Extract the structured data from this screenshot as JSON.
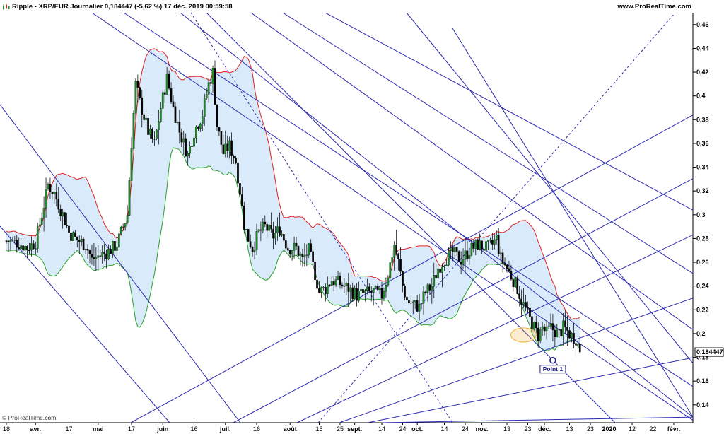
{
  "header": {
    "title": "Ripple - XRP/EUR Journalier 0,184447 (-5,62 %) 17 déc. 2019 00:59:58",
    "source": "www.ProRealTime.com"
  },
  "watermark": "© ProRealTime.com",
  "point_label": "Point 1",
  "last_price_label": "0,184447",
  "colors": {
    "bull_candle": "#1f8a2a",
    "bear_candle": "#000000",
    "upper_band": "#e02020",
    "lower_band": "#28a028",
    "band_fill": "#d9ebfb",
    "gann_lines": "#2a2ab0",
    "highlight": "#f5b942"
  },
  "chart_data": {
    "type": "candlestick",
    "title": "Ripple - XRP/EUR Journalier",
    "ylim": [
      0.125,
      0.47
    ],
    "y_ticks": [
      0.14,
      0.16,
      0.18,
      0.2,
      0.22,
      0.24,
      0.26,
      0.28,
      0.3,
      0.32,
      0.34,
      0.36,
      0.38,
      0.4,
      0.42,
      0.44,
      0.46
    ],
    "y_tick_labels": [
      "0,14",
      "0,16",
      "0,18",
      "0,2",
      "0,22",
      "0,24",
      "0,26",
      "0,28",
      "0,3",
      "0,32",
      "0,34",
      "0,36",
      "0,38",
      "0,4",
      "0,42",
      "0,44",
      "0,46"
    ],
    "x_ticks": [
      {
        "label": "18",
        "day": 0,
        "bold": false
      },
      {
        "label": "avr.",
        "day": 14,
        "bold": true
      },
      {
        "label": "17",
        "day": 30,
        "bold": false
      },
      {
        "label": "mai",
        "day": 44,
        "bold": true
      },
      {
        "label": "17",
        "day": 60,
        "bold": false
      },
      {
        "label": "juin",
        "day": 75,
        "bold": true
      },
      {
        "label": "16",
        "day": 90,
        "bold": false
      },
      {
        "label": "juil.",
        "day": 105,
        "bold": true
      },
      {
        "label": "16",
        "day": 120,
        "bold": false
      },
      {
        "label": "août",
        "day": 136,
        "bold": true
      },
      {
        "label": "15",
        "day": 150,
        "bold": false
      },
      {
        "label": "25",
        "day": 160,
        "bold": false
      },
      {
        "label": "sept.",
        "day": 167,
        "bold": true
      },
      {
        "label": "14",
        "day": 180,
        "bold": false
      },
      {
        "label": "24",
        "day": 190,
        "bold": false
      },
      {
        "label": "oct.",
        "day": 197,
        "bold": true
      },
      {
        "label": "14",
        "day": 210,
        "bold": false
      },
      {
        "label": "24",
        "day": 220,
        "bold": false
      },
      {
        "label": "nov.",
        "day": 228,
        "bold": true
      },
      {
        "label": "13",
        "day": 240,
        "bold": false
      },
      {
        "label": "23",
        "day": 250,
        "bold": false
      },
      {
        "label": "déc.",
        "day": 258,
        "bold": true
      },
      {
        "label": "13",
        "day": 270,
        "bold": false
      },
      {
        "label": "23",
        "day": 280,
        "bold": false
      },
      {
        "label": "2020",
        "day": 289,
        "bold": true
      },
      {
        "label": "12",
        "day": 300,
        "bold": false
      },
      {
        "label": "22",
        "day": 310,
        "bold": false
      },
      {
        "label": "févr.",
        "day": 320,
        "bold": true
      }
    ],
    "last_value": 0.184447,
    "change_pct": -5.62,
    "price_path": [
      [
        0,
        0.278
      ],
      [
        6,
        0.276
      ],
      [
        10,
        0.272
      ],
      [
        14,
        0.277
      ],
      [
        17,
        0.3
      ],
      [
        20,
        0.325
      ],
      [
        23,
        0.318
      ],
      [
        27,
        0.3
      ],
      [
        30,
        0.285
      ],
      [
        33,
        0.28
      ],
      [
        38,
        0.275
      ],
      [
        41,
        0.262
      ],
      [
        44,
        0.265
      ],
      [
        48,
        0.268
      ],
      [
        53,
        0.275
      ],
      [
        58,
        0.3
      ],
      [
        60,
        0.36
      ],
      [
        62,
        0.41
      ],
      [
        64,
        0.395
      ],
      [
        68,
        0.37
      ],
      [
        71,
        0.36
      ],
      [
        74,
        0.39
      ],
      [
        77,
        0.415
      ],
      [
        80,
        0.39
      ],
      [
        83,
        0.37
      ],
      [
        87,
        0.35
      ],
      [
        90,
        0.37
      ],
      [
        94,
        0.385
      ],
      [
        97,
        0.41
      ],
      [
        99,
        0.42
      ],
      [
        101,
        0.375
      ],
      [
        104,
        0.352
      ],
      [
        107,
        0.358
      ],
      [
        110,
        0.345
      ],
      [
        112,
        0.32
      ],
      [
        114,
        0.292
      ],
      [
        116,
        0.28
      ],
      [
        118,
        0.272
      ],
      [
        121,
        0.285
      ],
      [
        124,
        0.29
      ],
      [
        128,
        0.282
      ],
      [
        131,
        0.288
      ],
      [
        135,
        0.272
      ],
      [
        139,
        0.272
      ],
      [
        142,
        0.262
      ],
      [
        145,
        0.27
      ],
      [
        148,
        0.25
      ],
      [
        150,
        0.235
      ],
      [
        153,
        0.238
      ],
      [
        156,
        0.245
      ],
      [
        160,
        0.242
      ],
      [
        164,
        0.238
      ],
      [
        168,
        0.232
      ],
      [
        172,
        0.234
      ],
      [
        176,
        0.235
      ],
      [
        180,
        0.232
      ],
      [
        183,
        0.25
      ],
      [
        186,
        0.275
      ],
      [
        188,
        0.26
      ],
      [
        190,
        0.24
      ],
      [
        192,
        0.228
      ],
      [
        195,
        0.225
      ],
      [
        198,
        0.222
      ],
      [
        201,
        0.235
      ],
      [
        204,
        0.24
      ],
      [
        207,
        0.255
      ],
      [
        210,
        0.262
      ],
      [
        214,
        0.268
      ],
      [
        218,
        0.262
      ],
      [
        222,
        0.27
      ],
      [
        226,
        0.275
      ],
      [
        230,
        0.272
      ],
      [
        233,
        0.275
      ],
      [
        235,
        0.28
      ],
      [
        237,
        0.263
      ],
      [
        240,
        0.255
      ],
      [
        243,
        0.245
      ],
      [
        245,
        0.238
      ],
      [
        247,
        0.228
      ],
      [
        249,
        0.22
      ],
      [
        251,
        0.212
      ],
      [
        253,
        0.205
      ],
      [
        255,
        0.198
      ],
      [
        257,
        0.205
      ],
      [
        259,
        0.2
      ],
      [
        261,
        0.205
      ],
      [
        263,
        0.202
      ],
      [
        265,
        0.2
      ],
      [
        267,
        0.205
      ],
      [
        269,
        0.202
      ],
      [
        271,
        0.198
      ],
      [
        273,
        0.196
      ],
      [
        274,
        0.19
      ],
      [
        275,
        0.184447
      ]
    ],
    "point_1": {
      "day": 262,
      "value": 0.1775
    },
    "highlight_ellipse": {
      "day": 250,
      "value": 0.2
    }
  }
}
